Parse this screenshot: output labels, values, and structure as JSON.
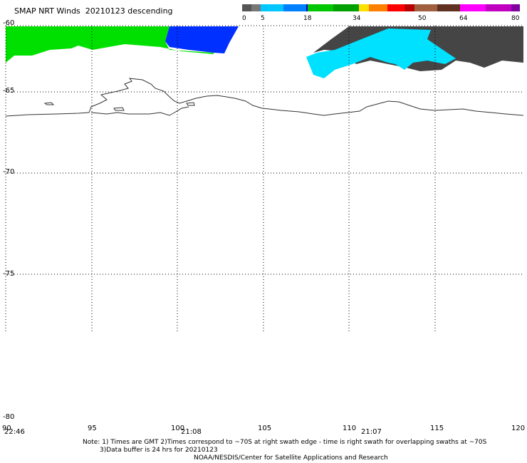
{
  "header": {
    "title": "SMAP NRT Winds  20210123 descending"
  },
  "colorbar": {
    "labels": [
      "0",
      "5",
      "18",
      "34",
      "50",
      "64",
      "80"
    ],
    "colors": [
      "#555555",
      "#777777",
      "#00c8ff",
      "#0080ff",
      "#0000c8",
      "#00c800",
      "#00a000",
      "#ffe000",
      "#ff8000",
      "#ff0000",
      "#b80000",
      "#a06040",
      "#603020",
      "#ff00ff",
      "#c000c0",
      "#8000a0"
    ]
  },
  "map": {
    "lat_labels": [
      "-60",
      "-65",
      "-70",
      "-75",
      "-80"
    ],
    "lon_labels": [
      "90",
      "95",
      "100",
      "105",
      "110",
      "115",
      "120"
    ],
    "time_labels": [
      "22:46",
      "21:08",
      "21:07"
    ],
    "swath_colors": {
      "green": "#00e000",
      "blue": "#0030ff",
      "cyan": "#00e0ff",
      "dark_gray": "#454545",
      "coast": "#333333",
      "grid": "#000000"
    }
  },
  "footer": {
    "note_line1": "Note: 1) Times are GMT 2)Times correspond to ~70S at right swath edge - time is right swath for overlapping swaths at ~70S",
    "note_line2": "3)Data buffer is 24 hrs for 20210123",
    "note_line3": "NOAA/NESDIS/Center for Satellite Applications and Research"
  }
}
